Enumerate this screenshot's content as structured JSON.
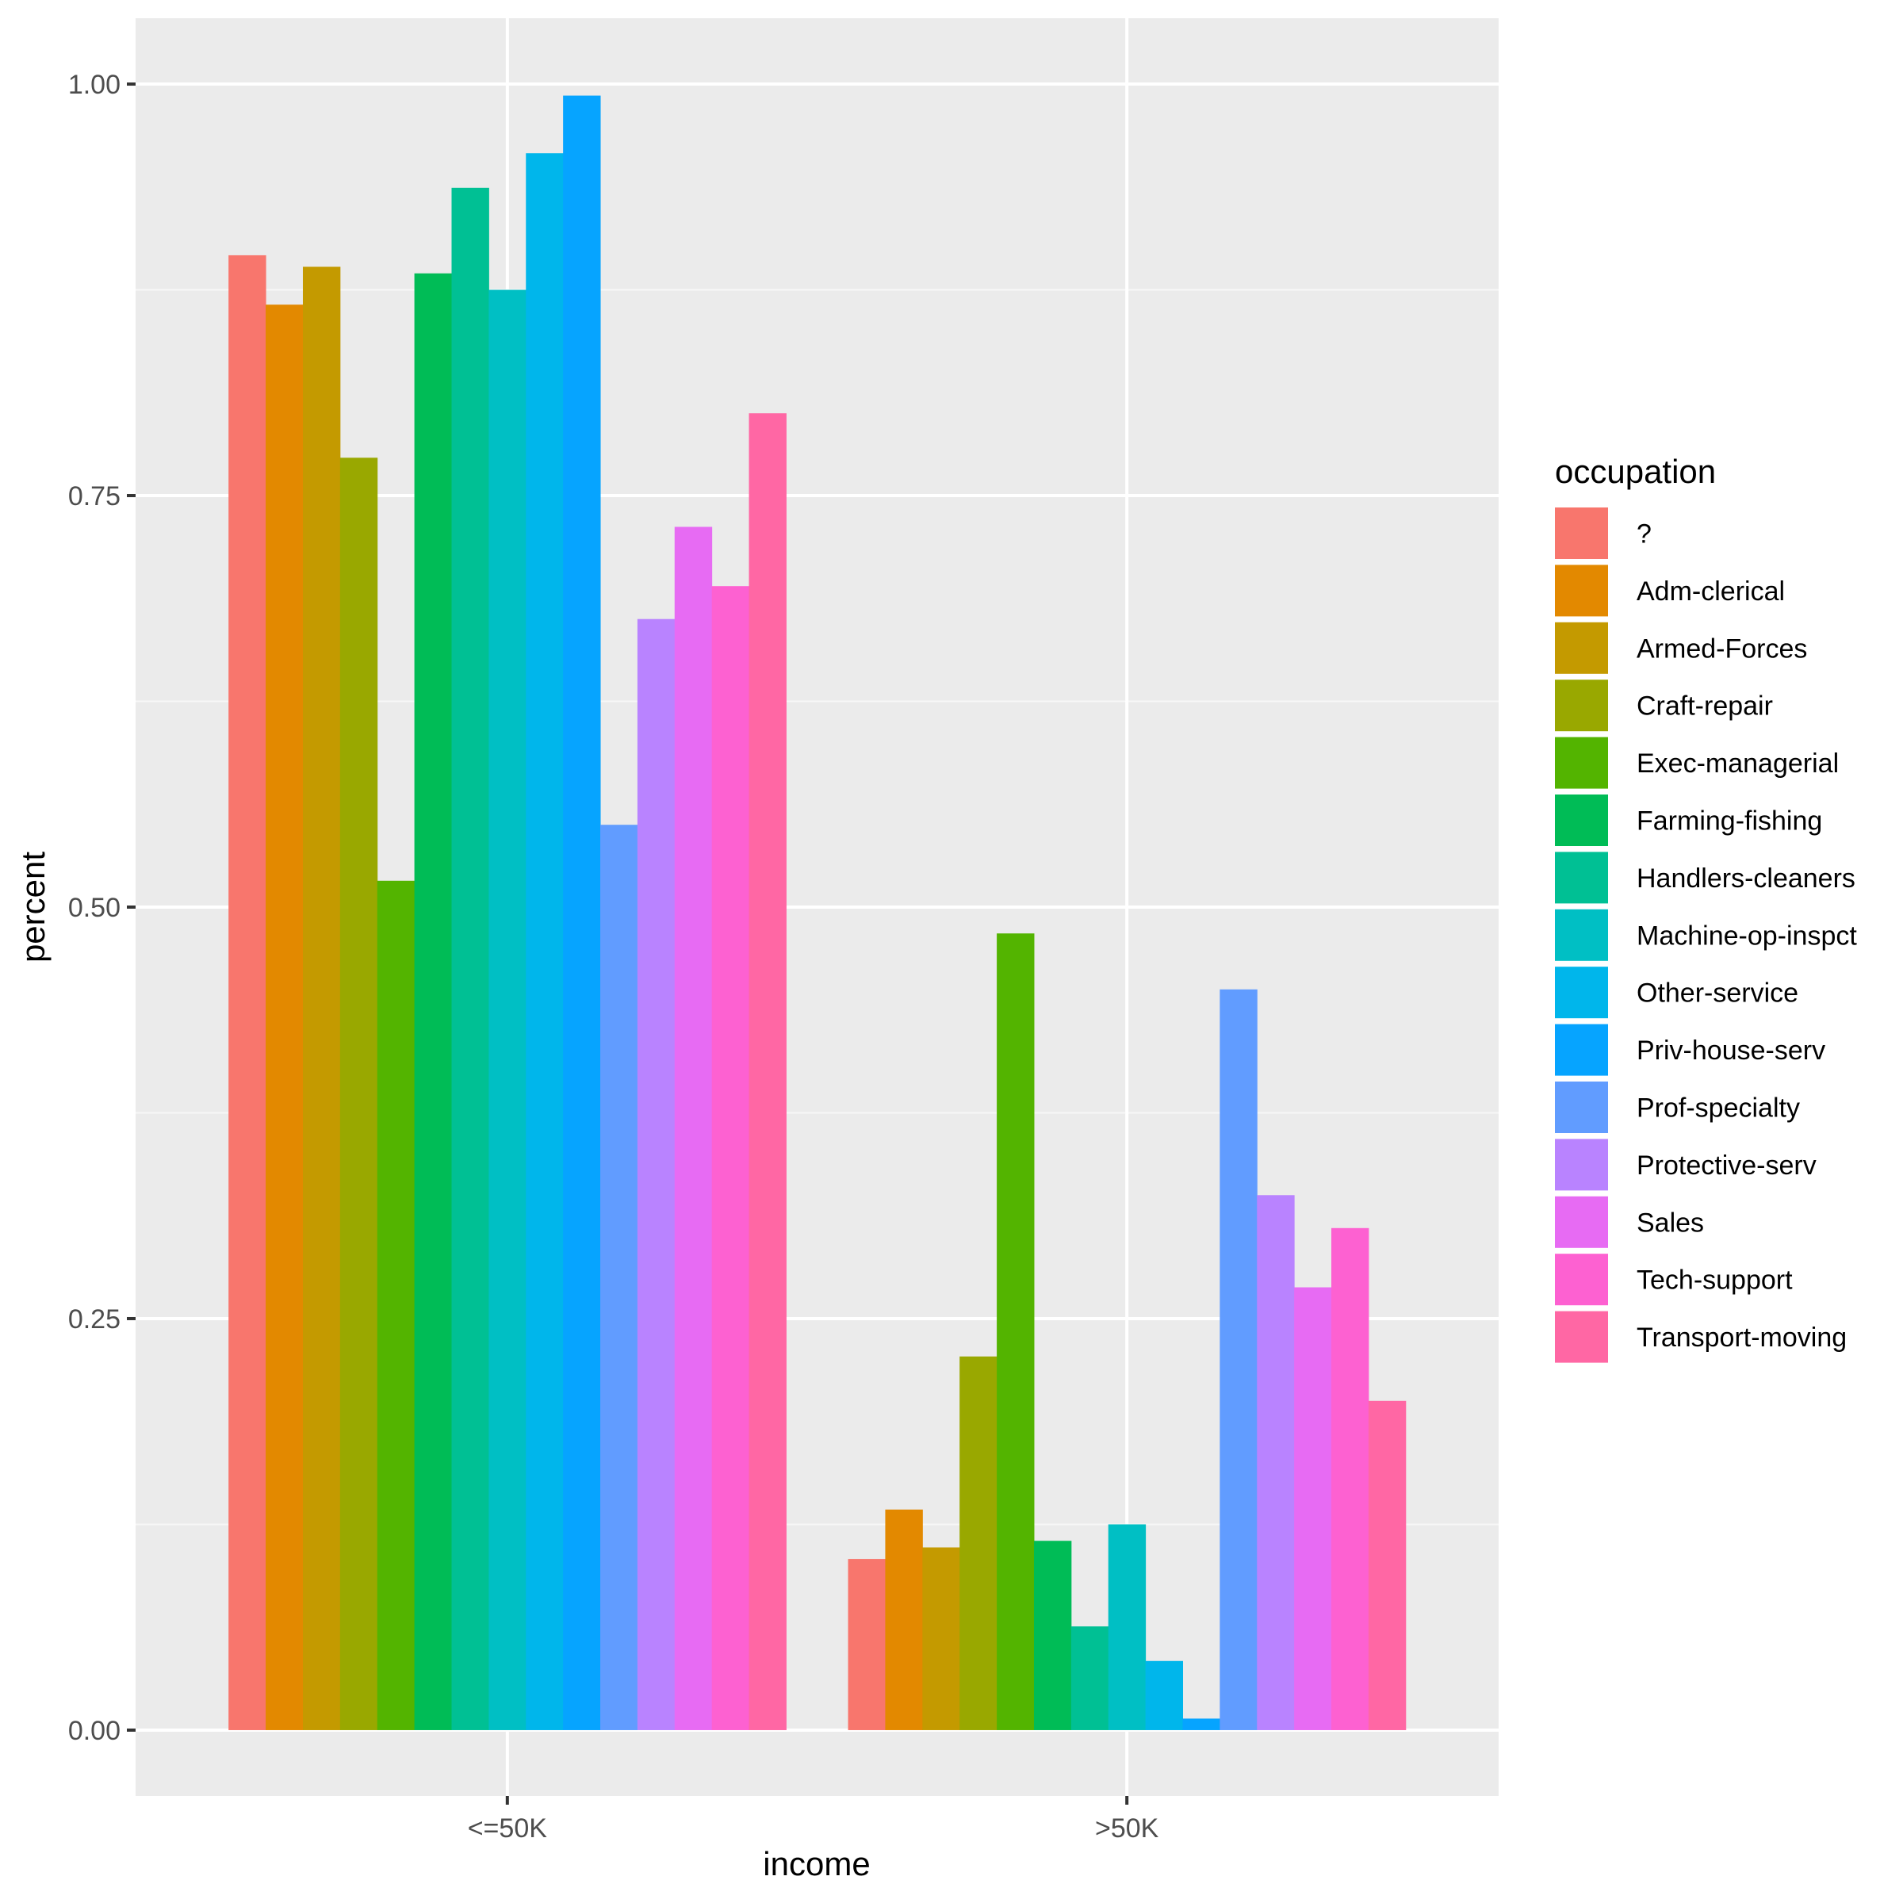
{
  "chart_data": {
    "type": "bar",
    "title": "",
    "xlabel": "income",
    "ylabel": "percent",
    "categories": [
      "<=50K",
      ">50K"
    ],
    "ylim": [
      -0.04,
      1.04
    ],
    "yticks": [
      0.0,
      0.25,
      0.5,
      0.75,
      1.0
    ],
    "ytick_labels": [
      "0.00",
      "0.25",
      "0.50",
      "0.75",
      "1.00"
    ],
    "grid": true,
    "legend": {
      "title": "occupation",
      "position": "right"
    },
    "series": [
      {
        "name": "?",
        "color": "#F8766D",
        "values": [
          0.896,
          0.104
        ]
      },
      {
        "name": "Adm-clerical",
        "color": "#E38900",
        "values": [
          0.866,
          0.134
        ]
      },
      {
        "name": "Armed-Forces",
        "color": "#C49A00",
        "values": [
          0.889,
          0.111
        ]
      },
      {
        "name": "Craft-repair",
        "color": "#99A800",
        "values": [
          0.773,
          0.227
        ]
      },
      {
        "name": "Exec-managerial",
        "color": "#53B400",
        "values": [
          0.516,
          0.484
        ]
      },
      {
        "name": "Farming-fishing",
        "color": "#00BC56",
        "values": [
          0.885,
          0.115
        ]
      },
      {
        "name": "Handlers-cleaners",
        "color": "#00C094",
        "values": [
          0.937,
          0.063
        ]
      },
      {
        "name": "Machine-op-inspct",
        "color": "#00BFC4",
        "values": [
          0.875,
          0.125
        ]
      },
      {
        "name": "Other-service",
        "color": "#00B6EB",
        "values": [
          0.958,
          0.042
        ]
      },
      {
        "name": "Priv-house-serv",
        "color": "#06A4FF",
        "values": [
          0.993,
          0.007
        ]
      },
      {
        "name": "Prof-specialty",
        "color": "#619CFF",
        "values": [
          0.55,
          0.45
        ]
      },
      {
        "name": "Protective-serv",
        "color": "#B983FF",
        "values": [
          0.675,
          0.325
        ]
      },
      {
        "name": "Sales",
        "color": "#E76BF3",
        "values": [
          0.731,
          0.269
        ]
      },
      {
        "name": "Tech-support",
        "color": "#FD61D1",
        "values": [
          0.695,
          0.305
        ]
      },
      {
        "name": "Transport-moving",
        "color": "#FF67A4",
        "values": [
          0.8,
          0.2
        ]
      }
    ]
  },
  "colors": {
    "panel_background": "#EBEBEB",
    "grid_major": "#FFFFFF",
    "grid_minor": "#F7F7F7",
    "tick_text": "#4D4D4D",
    "tick_mark": "#333333"
  }
}
